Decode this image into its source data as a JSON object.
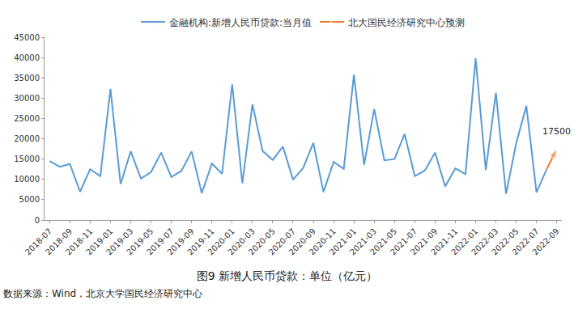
{
  "chart_data": {
    "type": "line",
    "caption": "图9  新增人民币贷款：单位（亿元）",
    "source": "数据来源：Wind，北京大学国民经济研究中心",
    "categories": [
      "2018-07",
      null,
      "2018-09",
      null,
      "2018-11",
      null,
      "2019-01",
      null,
      "2019-03",
      null,
      "2019-05",
      null,
      "2019-07",
      null,
      "2019-09",
      null,
      "2019-11",
      null,
      "2020-01",
      null,
      "2020-03",
      null,
      "2020-05",
      null,
      "2020-07",
      null,
      "2020-09",
      null,
      "2020-11",
      null,
      "2021-01",
      null,
      "2021-03",
      null,
      "2021-05",
      null,
      "2021-07",
      null,
      "2021-09",
      null,
      "2021-11",
      null,
      "2022-01",
      null,
      "2022-03",
      null,
      "2022-05",
      null,
      "2022-07",
      null,
      "2022-09"
    ],
    "series": [
      {
        "name": "金融机构:新增人民币贷款:当月值",
        "color": "#5b9bd5",
        "values": [
          14500,
          13100,
          13800,
          6970,
          12500,
          10800,
          32300,
          8858,
          16900,
          10200,
          11800,
          16600,
          10600,
          12100,
          16900,
          6613,
          13900,
          11400,
          33400,
          9057,
          28500,
          17000,
          14800,
          18100,
          9927,
          12800,
          19000,
          6898,
          14300,
          12600,
          35800,
          13600,
          27300,
          14700,
          15000,
          21200,
          10800,
          12200,
          16600,
          8262,
          12700,
          11300,
          39800,
          12300,
          31300,
          6454,
          18900,
          28100,
          6790,
          12500,
          null
        ]
      },
      {
        "name": "北大国民经济研究中心预测",
        "color": "#ed7d31",
        "marker": "arrow",
        "values": [
          null,
          null,
          null,
          null,
          null,
          null,
          null,
          null,
          null,
          null,
          null,
          null,
          null,
          null,
          null,
          null,
          null,
          null,
          null,
          null,
          null,
          null,
          null,
          null,
          null,
          null,
          null,
          null,
          null,
          null,
          null,
          null,
          null,
          null,
          null,
          null,
          null,
          null,
          null,
          null,
          null,
          null,
          null,
          null,
          null,
          null,
          null,
          null,
          null,
          12500,
          17500
        ]
      }
    ],
    "annotations": [
      {
        "text": "17500",
        "category": "2022-09",
        "y": 17500
      }
    ],
    "ylim": [
      0,
      45000
    ],
    "yticks": [
      0,
      5000,
      10000,
      15000,
      20000,
      25000,
      30000,
      35000,
      40000,
      45000
    ],
    "grid": false,
    "legend": "top"
  }
}
